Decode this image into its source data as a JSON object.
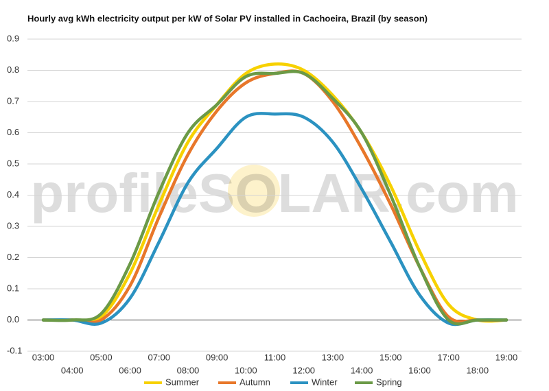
{
  "chart_data": {
    "type": "line",
    "title": "Hourly avg kWh electricity output per kW of Solar PV installed in Cachoeira, Brazil (by season)",
    "watermark": "profileSOLAR.com",
    "categories": [
      "03:00",
      "04:00",
      "05:00",
      "06:00",
      "07:00",
      "08:00",
      "09:00",
      "10:00",
      "11:00",
      "12:00",
      "13:00",
      "14:00",
      "15:00",
      "16:00",
      "17:00",
      "18:00",
      "19:00"
    ],
    "series": [
      {
        "name": "Summer",
        "color": "#f7d100",
        "values": [
          0,
          0,
          0.01,
          0.15,
          0.37,
          0.57,
          0.69,
          0.79,
          0.82,
          0.8,
          0.72,
          0.6,
          0.43,
          0.22,
          0.05,
          0,
          0
        ]
      },
      {
        "name": "Autumn",
        "color": "#e8772a",
        "values": [
          0,
          0,
          0,
          0.11,
          0.33,
          0.53,
          0.67,
          0.76,
          0.79,
          0.79,
          0.7,
          0.55,
          0.37,
          0.17,
          0.01,
          0,
          0
        ]
      },
      {
        "name": "Winter",
        "color": "#2b92c1",
        "values": [
          0,
          0,
          -0.01,
          0.07,
          0.25,
          0.44,
          0.55,
          0.65,
          0.66,
          0.65,
          0.57,
          0.42,
          0.25,
          0.08,
          -0.01,
          0,
          0
        ]
      },
      {
        "name": "Spring",
        "color": "#6b9a47",
        "values": [
          0,
          0,
          0.02,
          0.18,
          0.41,
          0.6,
          0.69,
          0.78,
          0.79,
          0.79,
          0.71,
          0.6,
          0.4,
          0.17,
          0,
          0,
          0
        ]
      }
    ],
    "ylim": [
      -0.1,
      0.9
    ],
    "yticks": [
      -0.1,
      {
        "value": 0,
        "label": "0.0"
      },
      0.1,
      0.2,
      0.3,
      0.4,
      0.5,
      0.6,
      0.7,
      0.8,
      0.9
    ],
    "grid": true,
    "legend": "bottom"
  }
}
